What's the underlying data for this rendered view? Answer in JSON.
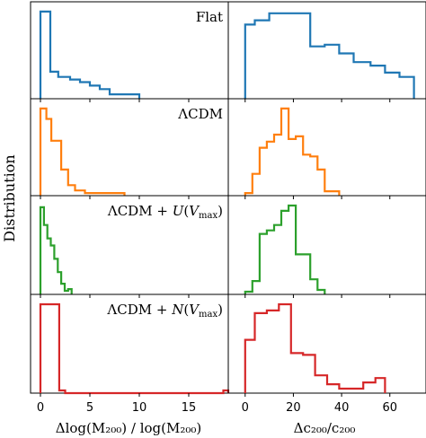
{
  "figure": {
    "ylabel": "Distribution",
    "xlabel_left": "Δlog(M₂₀₀) / log(M₂₀₀)",
    "xlabel_right": "Δc₂₀₀/c₂₀₀"
  },
  "chart_data": [
    {
      "type": "histogram",
      "panel": "row1-left",
      "annotation": "Flat",
      "color": "#1f77b4",
      "xlim": [
        -1,
        19
      ],
      "ylim": [
        0,
        1.05
      ],
      "xticks": [
        0,
        5,
        10,
        15
      ],
      "edges": [
        0,
        1,
        1.8,
        3,
        4,
        5,
        6,
        7,
        8,
        9,
        10
      ],
      "values": [
        1.0,
        0.31,
        0.25,
        0.22,
        0.19,
        0.15,
        0.11,
        0.05,
        0.05,
        0.05
      ]
    },
    {
      "type": "histogram",
      "panel": "row1-right",
      "color": "#1f77b4",
      "xlim": [
        -7,
        75
      ],
      "ylim": [
        0,
        1.05
      ],
      "xticks": [
        0,
        20,
        40,
        60
      ],
      "edges": [
        0,
        4,
        10,
        20,
        27,
        33,
        39,
        45,
        52,
        58,
        64,
        70
      ],
      "values": [
        0.85,
        0.9,
        0.98,
        0.98,
        0.6,
        0.62,
        0.52,
        0.42,
        0.38,
        0.3,
        0.25
      ]
    },
    {
      "type": "histogram",
      "panel": "row2-left",
      "annotation": "ΛCDM",
      "color": "#ff7f0e",
      "xlim": [
        -1,
        19
      ],
      "ylim": [
        0,
        1.05
      ],
      "xticks": [
        0,
        5,
        10,
        15
      ],
      "edges": [
        0,
        0.6,
        1.1,
        1.6,
        2.1,
        2.8,
        3.5,
        4.5,
        5.5,
        6.5,
        7.5,
        8.5
      ],
      "values": [
        1.0,
        0.88,
        0.63,
        0.63,
        0.3,
        0.12,
        0.06,
        0.03,
        0.03,
        0.03,
        0.03
      ]
    },
    {
      "type": "histogram",
      "panel": "row2-right",
      "color": "#ff7f0e",
      "xlim": [
        -7,
        75
      ],
      "ylim": [
        0,
        1.05
      ],
      "xticks": [
        0,
        20,
        40,
        60
      ],
      "edges": [
        0,
        3,
        6,
        9,
        12,
        15,
        18,
        21,
        24,
        27,
        30,
        33,
        36,
        39
      ],
      "values": [
        0.03,
        0.25,
        0.55,
        0.62,
        0.7,
        1.0,
        0.65,
        0.68,
        0.47,
        0.45,
        0.3,
        0.05,
        0.05
      ]
    },
    {
      "type": "histogram",
      "panel": "row3-left",
      "annotation": "ΛCDM + U(V_max)",
      "color": "#2ca02c",
      "xlim": [
        -1,
        19
      ],
      "ylim": [
        0,
        1.05
      ],
      "xticks": [
        0,
        5,
        10,
        15
      ],
      "edges": [
        0,
        0.35,
        0.7,
        1.05,
        1.4,
        1.75,
        2.1,
        2.45,
        2.8,
        3.15
      ],
      "values": [
        0.98,
        0.78,
        0.63,
        0.55,
        0.4,
        0.25,
        0.12,
        0.04,
        0.06
      ]
    },
    {
      "type": "histogram",
      "panel": "row3-right",
      "color": "#2ca02c",
      "xlim": [
        -7,
        75
      ],
      "ylim": [
        0,
        1.05
      ],
      "xticks": [
        0,
        20,
        40,
        60
      ],
      "edges": [
        0,
        3,
        6,
        9,
        12,
        15,
        18,
        21,
        24,
        27,
        30,
        33
      ],
      "values": [
        0.03,
        0.15,
        0.68,
        0.72,
        0.78,
        0.94,
        1.0,
        0.45,
        0.45,
        0.17,
        0.05
      ]
    },
    {
      "type": "histogram",
      "panel": "row4-left",
      "annotation": "ΛCDM + N(V_max)",
      "color": "#d62728",
      "xlim": [
        -1,
        19
      ],
      "ylim": [
        0,
        1.05
      ],
      "xticks": [
        0,
        5,
        10,
        15
      ],
      "edges": [
        0,
        1.9,
        2.5,
        17.5,
        18.5,
        19
      ],
      "values": [
        1.0,
        0.03,
        0.0,
        0.0,
        0.03
      ]
    },
    {
      "type": "histogram",
      "panel": "row4-right",
      "color": "#d62728",
      "xlim": [
        -7,
        75
      ],
      "ylim": [
        0,
        1.05
      ],
      "xticks": [
        0,
        20,
        40,
        60
      ],
      "edges": [
        0,
        4,
        9,
        14,
        19,
        24,
        29,
        34,
        39,
        44,
        49,
        54,
        58
      ],
      "values": [
        0.6,
        0.9,
        0.93,
        1.0,
        0.45,
        0.43,
        0.2,
        0.1,
        0.05,
        0.05,
        0.12,
        0.17
      ]
    }
  ]
}
